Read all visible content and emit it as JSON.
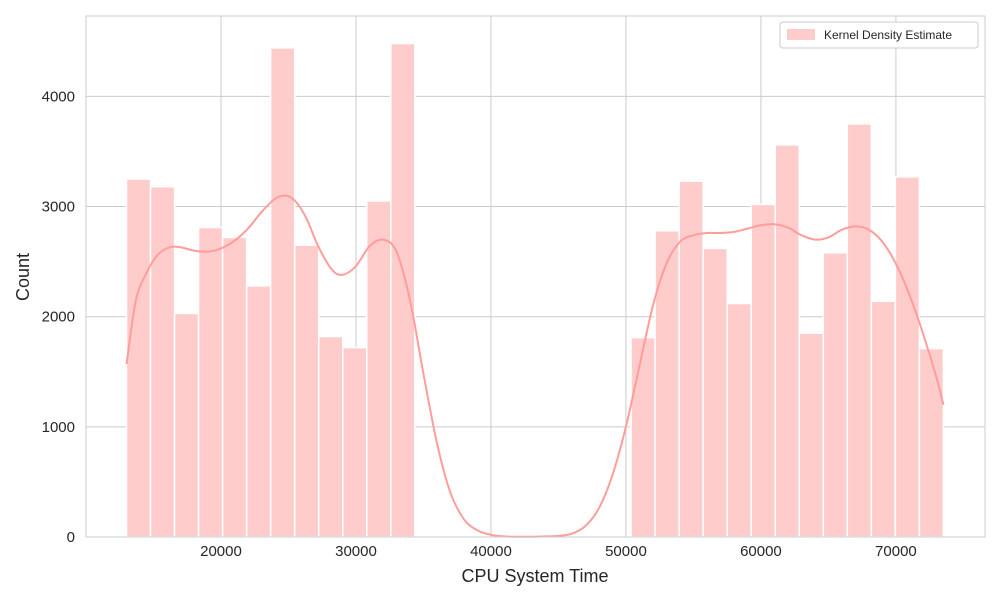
{
  "chart_data": {
    "type": "bar",
    "title": "",
    "xlabel": "CPU System Time",
    "ylabel": "Count",
    "xlim": [
      10000,
      76600
    ],
    "ylim": [
      0,
      4730
    ],
    "x_ticks": [
      "20000",
      "30000",
      "40000",
      "50000",
      "60000",
      "70000"
    ],
    "y_ticks": [
      "0",
      "1000",
      "2000",
      "3000",
      "4000"
    ],
    "grid": true,
    "legend": {
      "position": "top-right",
      "entries": [
        "Kernel Density Estimate"
      ]
    },
    "colors": {
      "bar": "#ffcccc",
      "bar_edge": "#ffffff",
      "kde_line": "#ff9d9a",
      "grid": "#cccccc",
      "frame": "#cccccc",
      "legend_border": "#cccccc"
    },
    "series": [
      {
        "name": "Kernel Density Estimate",
        "kind": "histogram",
        "bin_width": 1780,
        "bins": [
          {
            "x0": 13000,
            "x1": 14780,
            "count": 3250
          },
          {
            "x0": 14780,
            "x1": 16560,
            "count": 3180
          },
          {
            "x0": 16560,
            "x1": 18340,
            "count": 2030
          },
          {
            "x0": 18340,
            "x1": 20120,
            "count": 2810
          },
          {
            "x0": 20120,
            "x1": 21900,
            "count": 2720
          },
          {
            "x0": 21900,
            "x1": 23680,
            "count": 2280
          },
          {
            "x0": 23680,
            "x1": 25460,
            "count": 4440
          },
          {
            "x0": 25460,
            "x1": 27240,
            "count": 2650
          },
          {
            "x0": 27240,
            "x1": 29020,
            "count": 1820
          },
          {
            "x0": 29020,
            "x1": 30800,
            "count": 1720
          },
          {
            "x0": 30800,
            "x1": 32580,
            "count": 3050
          },
          {
            "x0": 32580,
            "x1": 34360,
            "count": 4480
          },
          {
            "x0": 50380,
            "x1": 52160,
            "count": 1810
          },
          {
            "x0": 52160,
            "x1": 53940,
            "count": 2780
          },
          {
            "x0": 53940,
            "x1": 55720,
            "count": 3230
          },
          {
            "x0": 55720,
            "x1": 57500,
            "count": 2620
          },
          {
            "x0": 57500,
            "x1": 59280,
            "count": 2120
          },
          {
            "x0": 59280,
            "x1": 61060,
            "count": 3020
          },
          {
            "x0": 61060,
            "x1": 62840,
            "count": 3560
          },
          {
            "x0": 62840,
            "x1": 64620,
            "count": 1850
          },
          {
            "x0": 64620,
            "x1": 66400,
            "count": 2580
          },
          {
            "x0": 66400,
            "x1": 68180,
            "count": 3750
          },
          {
            "x0": 68180,
            "x1": 69960,
            "count": 2140
          },
          {
            "x0": 69960,
            "x1": 71740,
            "count": 3270
          },
          {
            "x0": 71740,
            "x1": 73520,
            "count": 1710
          }
        ]
      },
      {
        "name": "kde",
        "kind": "line",
        "points": [
          [
            13000,
            1570
          ],
          [
            13700,
            2150
          ],
          [
            14500,
            2400
          ],
          [
            15300,
            2560
          ],
          [
            16200,
            2630
          ],
          [
            17000,
            2630
          ],
          [
            18000,
            2600
          ],
          [
            19000,
            2590
          ],
          [
            20000,
            2620
          ],
          [
            21000,
            2690
          ],
          [
            22000,
            2800
          ],
          [
            23000,
            2950
          ],
          [
            24000,
            3070
          ],
          [
            24800,
            3100
          ],
          [
            25500,
            3050
          ],
          [
            26300,
            2900
          ],
          [
            27200,
            2640
          ],
          [
            28200,
            2430
          ],
          [
            29000,
            2380
          ],
          [
            30000,
            2460
          ],
          [
            31000,
            2640
          ],
          [
            32000,
            2700
          ],
          [
            33000,
            2590
          ],
          [
            34000,
            2150
          ],
          [
            35000,
            1480
          ],
          [
            36000,
            850
          ],
          [
            37000,
            400
          ],
          [
            38000,
            160
          ],
          [
            39000,
            60
          ],
          [
            40000,
            20
          ],
          [
            41000,
            5
          ],
          [
            42000,
            2
          ],
          [
            43000,
            2
          ],
          [
            44000,
            5
          ],
          [
            45000,
            10
          ],
          [
            46000,
            30
          ],
          [
            47000,
            100
          ],
          [
            48000,
            260
          ],
          [
            49000,
            560
          ],
          [
            50000,
            1000
          ],
          [
            51000,
            1550
          ],
          [
            52000,
            2100
          ],
          [
            53000,
            2480
          ],
          [
            54000,
            2680
          ],
          [
            55000,
            2740
          ],
          [
            56000,
            2760
          ],
          [
            57000,
            2760
          ],
          [
            58000,
            2770
          ],
          [
            59000,
            2800
          ],
          [
            60000,
            2830
          ],
          [
            61000,
            2840
          ],
          [
            62000,
            2810
          ],
          [
            63000,
            2740
          ],
          [
            64000,
            2700
          ],
          [
            65000,
            2720
          ],
          [
            66000,
            2790
          ],
          [
            67000,
            2820
          ],
          [
            68000,
            2790
          ],
          [
            69000,
            2680
          ],
          [
            70000,
            2480
          ],
          [
            71000,
            2200
          ],
          [
            72000,
            1850
          ],
          [
            73000,
            1450
          ],
          [
            73520,
            1200
          ]
        ]
      }
    ]
  }
}
